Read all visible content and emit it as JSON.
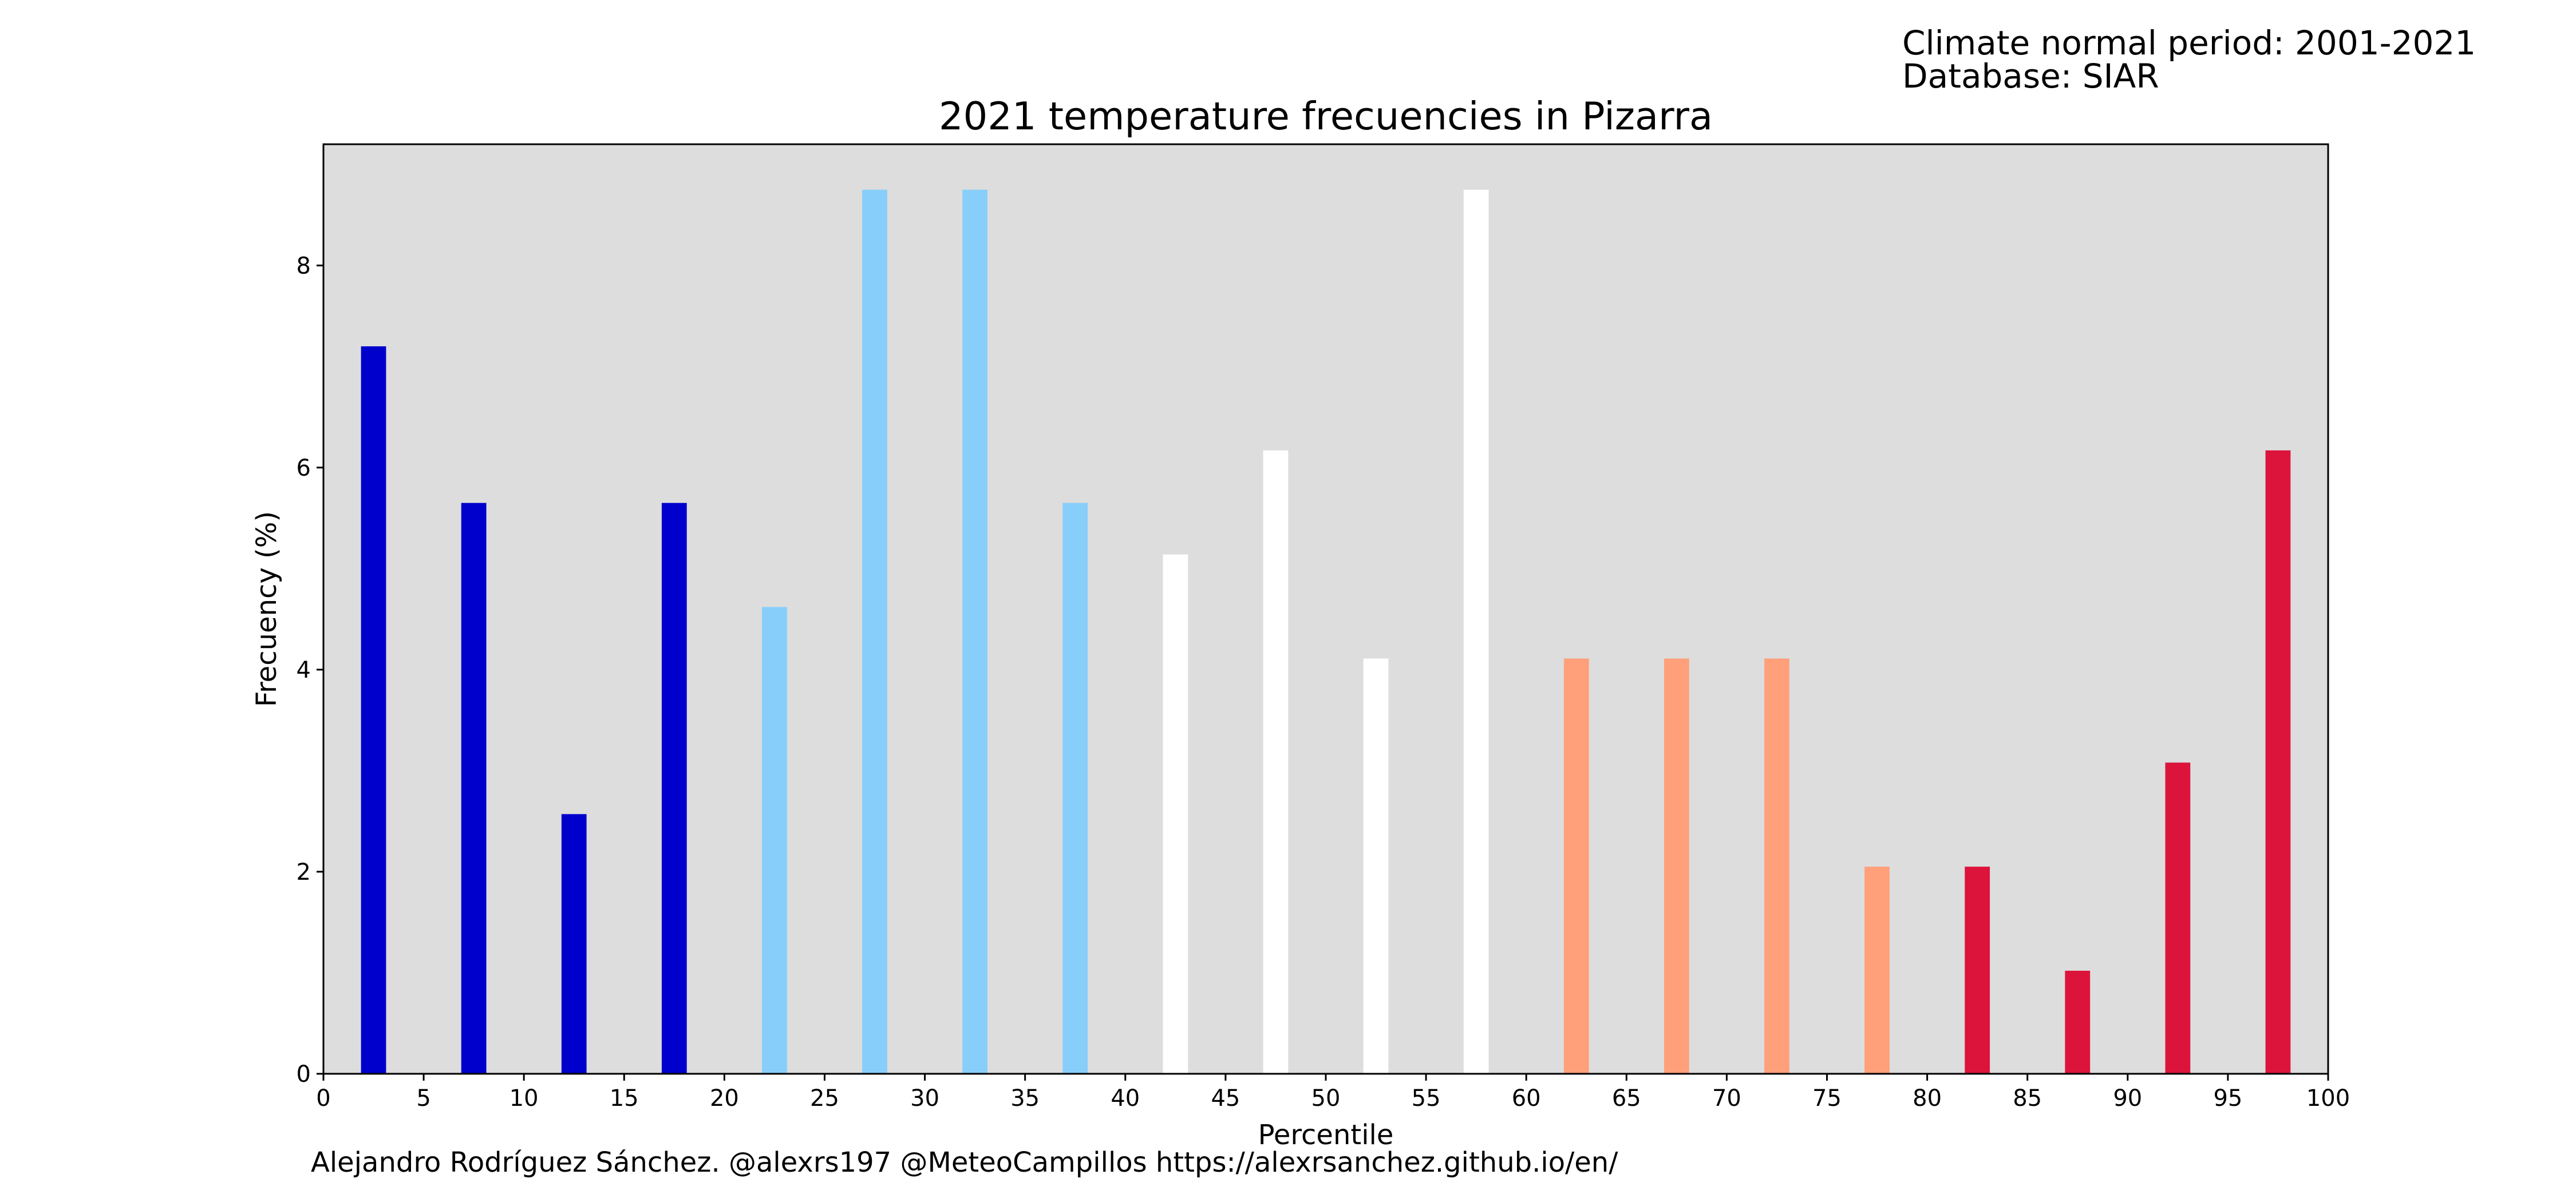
{
  "meta_lines": [
    "Climate normal period: 2001-2021",
    "Database: SIAR"
  ],
  "credit": "Alejandro Rodríguez Sánchez. @alexrs197 @MeteoCampillos   https://alexrsanchez.github.io/en/",
  "colors": {
    "plot_background": "#dddddd",
    "very_cold": "#0000cd",
    "cold": "#87cefa",
    "normal": "#ffffff",
    "warm": "#ffa07a",
    "very_warm": "#dc143c"
  },
  "chart_data": {
    "type": "bar",
    "title": "2021 temperature frecuencies in Pizarra",
    "xlabel": "Percentile",
    "ylabel": "Frecuency (%)",
    "xlim": [
      0,
      100
    ],
    "ylim": [
      0,
      9.2
    ],
    "grid": false,
    "x_ticks": [
      0,
      5,
      10,
      15,
      20,
      25,
      30,
      35,
      40,
      45,
      50,
      55,
      60,
      65,
      70,
      75,
      80,
      85,
      90,
      95,
      100
    ],
    "y_ticks": [
      0,
      2,
      4,
      6,
      8
    ],
    "bar_width": 1.25,
    "x": [
      2.5,
      7.5,
      12.5,
      17.5,
      22.5,
      27.5,
      32.5,
      37.5,
      42.5,
      47.5,
      52.5,
      57.5,
      62.5,
      67.5,
      72.5,
      77.5,
      82.5,
      87.5,
      92.5,
      97.5
    ],
    "values": [
      7.2,
      5.65,
      2.57,
      5.65,
      4.62,
      8.75,
      8.75,
      5.65,
      5.14,
      6.17,
      4.11,
      8.75,
      4.11,
      4.11,
      4.11,
      2.05,
      2.05,
      1.02,
      3.08,
      6.17
    ],
    "bar_colors": [
      "very_cold",
      "very_cold",
      "very_cold",
      "very_cold",
      "cold",
      "cold",
      "cold",
      "cold",
      "normal",
      "normal",
      "normal",
      "normal",
      "warm",
      "warm",
      "warm",
      "warm",
      "very_warm",
      "very_warm",
      "very_warm",
      "very_warm"
    ]
  }
}
